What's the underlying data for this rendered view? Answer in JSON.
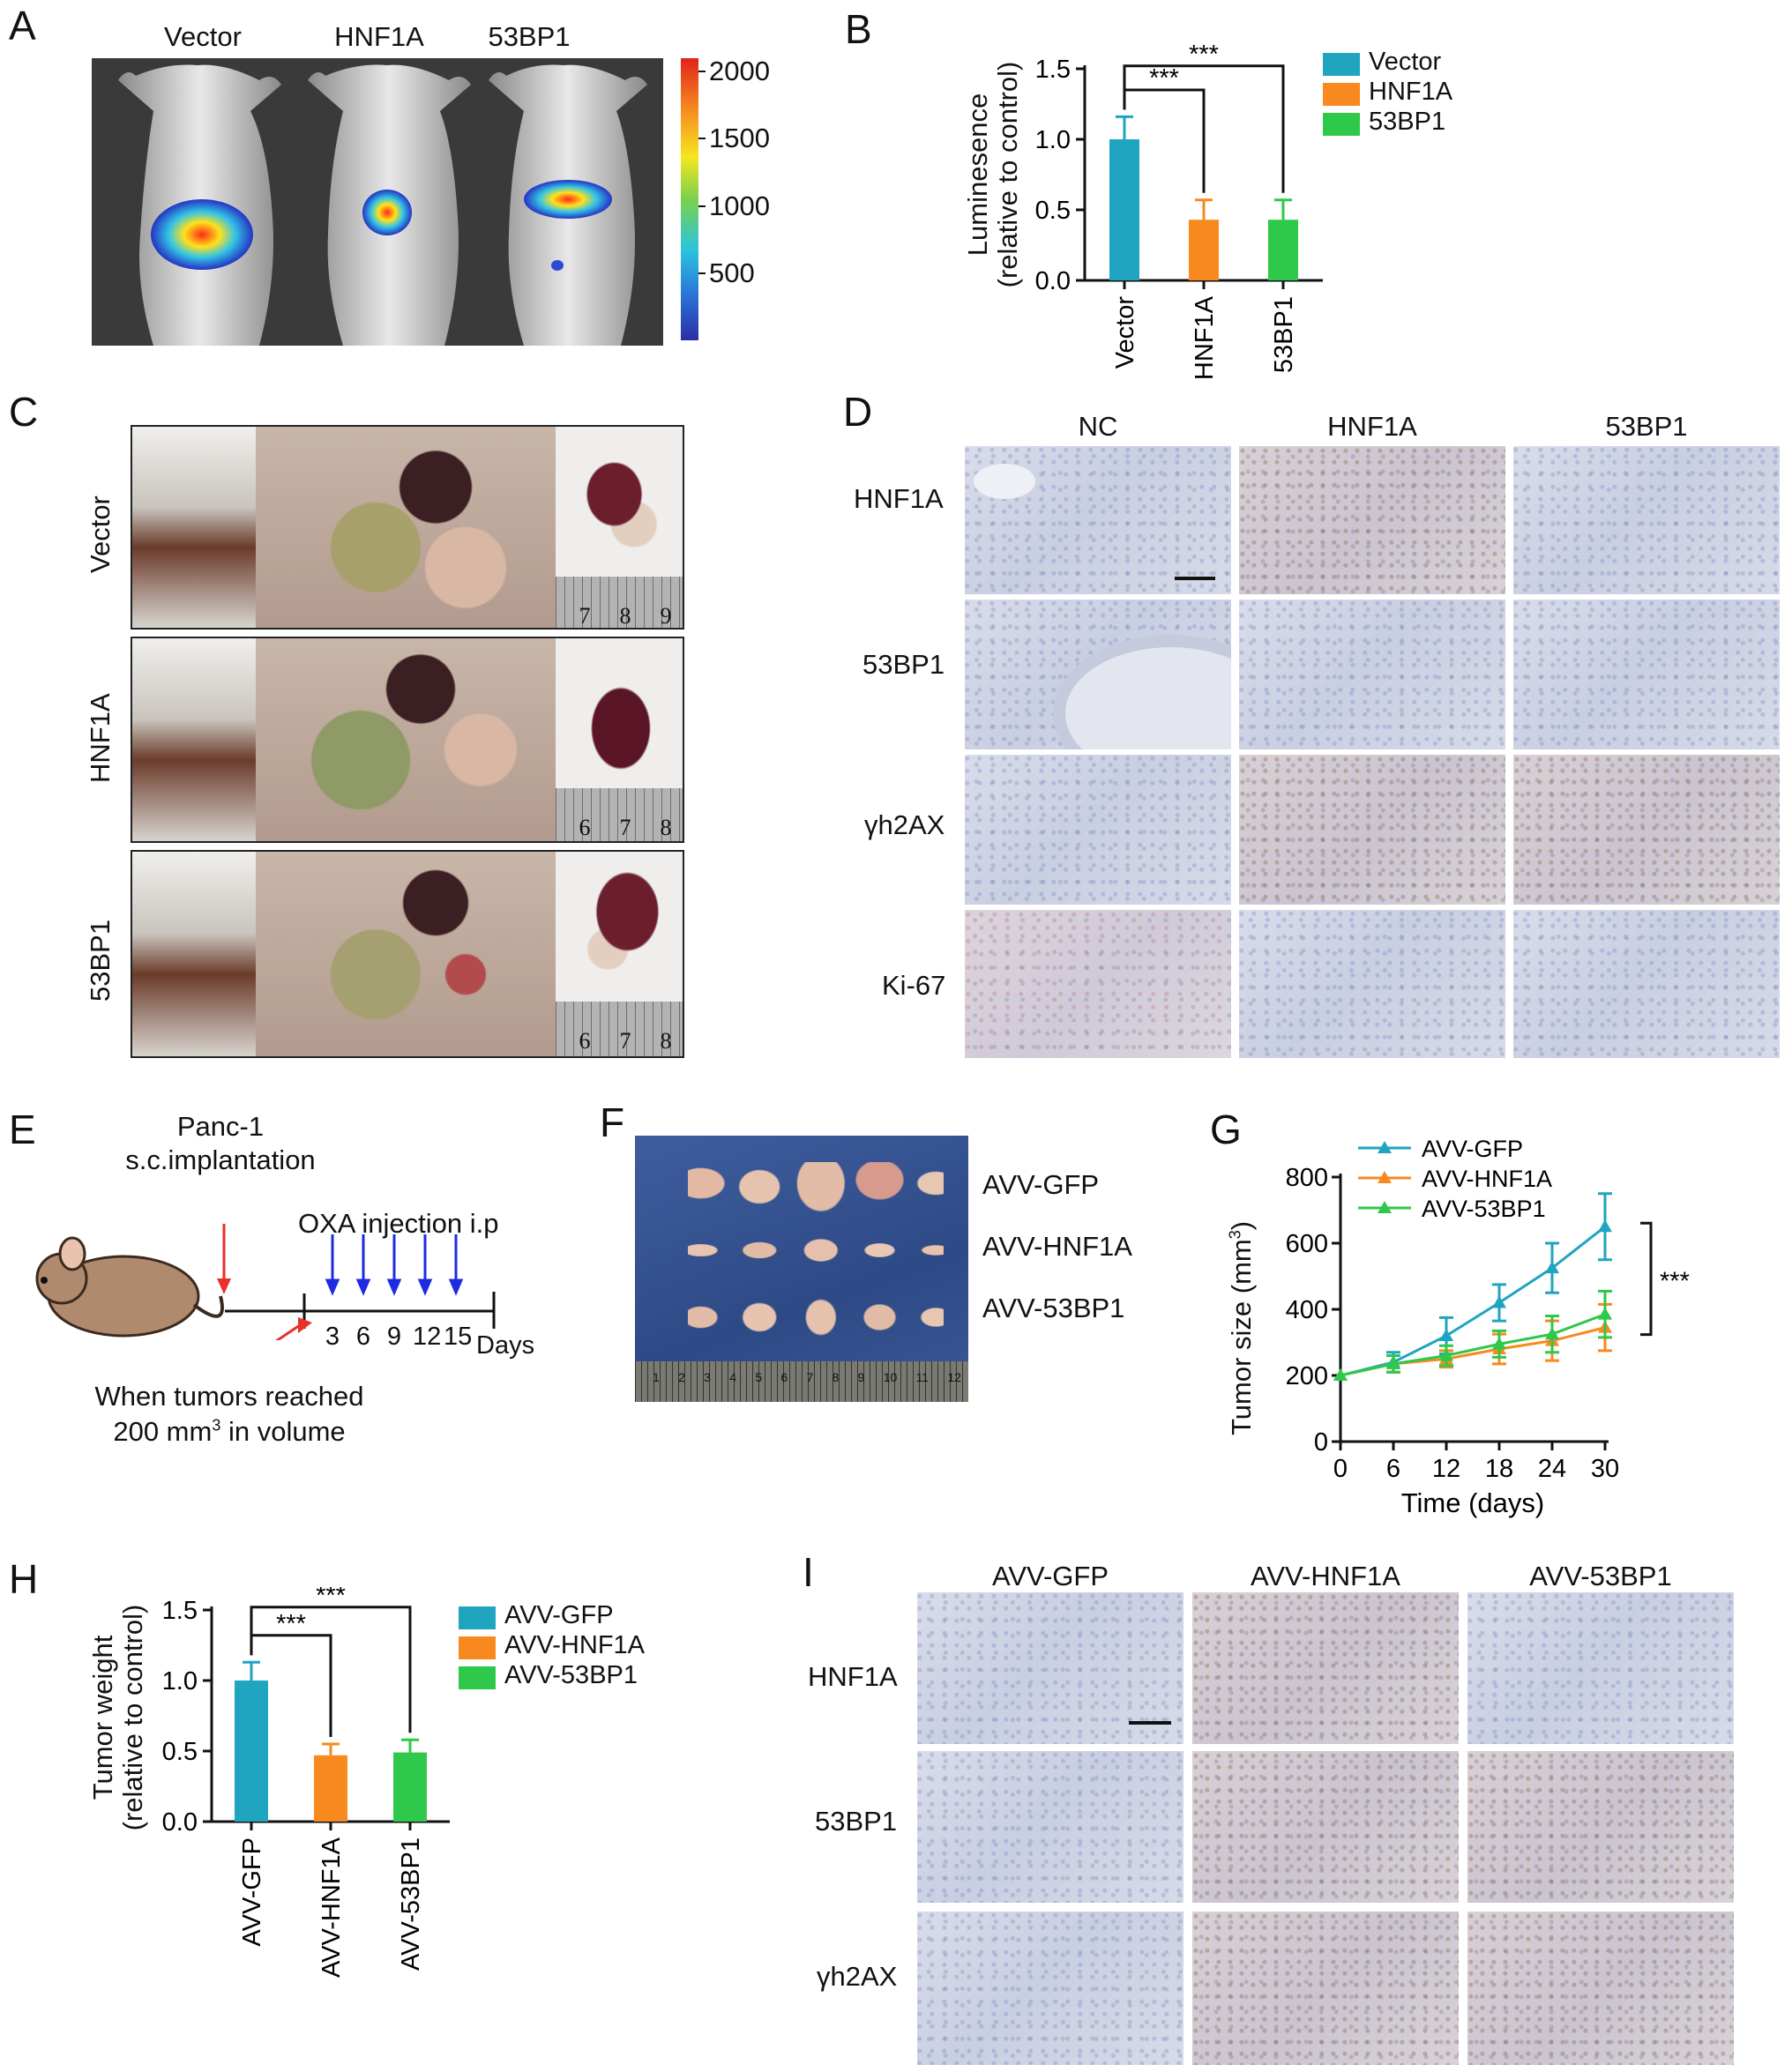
{
  "panel_labels": {
    "A": "A",
    "B": "B",
    "C": "C",
    "D": "D",
    "E": "E",
    "F": "F",
    "G": "G",
    "H": "H",
    "I": "I"
  },
  "colors": {
    "teal": "#1fa5bf",
    "orange": "#f7891e",
    "green": "#2ec84a",
    "black": "#111111"
  },
  "panelA": {
    "groups": [
      "Vector",
      "HNF1A",
      "53BP1"
    ],
    "colorbar_ticks": [
      "2000",
      "1500",
      "1000",
      "500"
    ],
    "colorbar_range": [
      0,
      2100
    ]
  },
  "panelC": {
    "rows": [
      "Vector",
      "HNF1A",
      "53BP1"
    ],
    "rulers": [
      [
        "7",
        "8",
        "9"
      ],
      [
        "6",
        "7",
        "8"
      ],
      [
        "6",
        "7",
        "8"
      ]
    ]
  },
  "panelD": {
    "columns": [
      "NC",
      "HNF1A",
      "53BP1"
    ],
    "rows": [
      "HNF1A",
      "53BP1",
      "γh2AX",
      "Ki-67"
    ]
  },
  "panelE": {
    "cell": "Panc-1",
    "route": "s.c.implantation",
    "treatment": "OXA injection i.p",
    "days": [
      "3",
      "6",
      "9",
      "12",
      "15"
    ],
    "days_label": "Days",
    "note_line1": "When tumors reached",
    "note_line2_pre": "200 mm",
    "note_line2_sup": "3",
    "note_line2_post": " in volume"
  },
  "panelF": {
    "labels": [
      "AVV-GFP",
      "AVV-HNF1A",
      "AVV-53BP1"
    ],
    "ruler": [
      "1",
      "2",
      "3",
      "4",
      "5",
      "6",
      "7",
      "8",
      "9",
      "10",
      "11",
      "12"
    ]
  },
  "chart_data": [
    {
      "id": "B",
      "type": "bar",
      "categories": [
        "Vector",
        "HNF1A",
        "53BP1"
      ],
      "values": [
        1.0,
        0.43,
        0.43
      ],
      "errors": [
        0.16,
        0.14,
        0.14
      ],
      "colors": [
        "#1fa5bf",
        "#f7891e",
        "#2ec84a"
      ],
      "ylabel_line1": "Luminesence",
      "ylabel_line2": "(relative to control)",
      "ylim": [
        0,
        1.5
      ],
      "yticks": [
        "0.0",
        "0.5",
        "1.0",
        "1.5"
      ],
      "legend": [
        "Vector",
        "HNF1A",
        "53BP1"
      ],
      "significance": [
        {
          "pair": [
            "Vector",
            "HNF1A"
          ],
          "label": "***"
        },
        {
          "pair": [
            "Vector",
            "53BP1"
          ],
          "label": "***"
        }
      ]
    },
    {
      "id": "G",
      "type": "line",
      "x": [
        0,
        6,
        12,
        18,
        24,
        30
      ],
      "xlabel": "Time (days)",
      "ylabel_pre": "Tumor size (mm",
      "ylabel_sup": "3",
      "ylabel_post": ")",
      "xticks": [
        "0",
        "6",
        "12",
        "18",
        "24",
        "30"
      ],
      "yticks": [
        "0",
        "200",
        "400",
        "600",
        "800"
      ],
      "ylim": [
        0,
        800
      ],
      "xlim": [
        0,
        30
      ],
      "series": [
        {
          "name": "AVV-GFP",
          "color": "#1fa5bf",
          "values": [
            200,
            240,
            320,
            420,
            525,
            650
          ],
          "errors": [
            0,
            30,
            55,
            55,
            75,
            100
          ]
        },
        {
          "name": "AVV-HNF1A",
          "color": "#f7891e",
          "values": [
            200,
            235,
            250,
            280,
            305,
            345
          ],
          "errors": [
            0,
            25,
            25,
            45,
            60,
            70
          ]
        },
        {
          "name": "AVV-53BP1",
          "color": "#2ec84a",
          "values": [
            200,
            235,
            260,
            295,
            325,
            385
          ],
          "errors": [
            0,
            25,
            30,
            40,
            55,
            70
          ]
        }
      ],
      "significance": "***"
    },
    {
      "id": "H",
      "type": "bar",
      "categories": [
        "AVV-GFP",
        "AVV-HNF1A",
        "AVV-53BP1"
      ],
      "values": [
        1.0,
        0.47,
        0.49
      ],
      "errors": [
        0.13,
        0.08,
        0.09
      ],
      "colors": [
        "#1fa5bf",
        "#f7891e",
        "#2ec84a"
      ],
      "ylabel_line1": "Tumor weight",
      "ylabel_line2": "(relative to control)",
      "ylim": [
        0,
        1.5
      ],
      "yticks": [
        "0.0",
        "0.5",
        "1.0",
        "1.5"
      ],
      "legend": [
        "AVV-GFP",
        "AVV-HNF1A",
        "AVV-53BP1"
      ],
      "significance": [
        {
          "pair": [
            "AVV-GFP",
            "AVV-HNF1A"
          ],
          "label": "***"
        },
        {
          "pair": [
            "AVV-GFP",
            "AVV-53BP1"
          ],
          "label": "***"
        }
      ]
    }
  ],
  "panelI": {
    "columns": [
      "AVV-GFP",
      "AVV-HNF1A",
      "AVV-53BP1"
    ],
    "rows": [
      "HNF1A",
      "53BP1",
      "γh2AX"
    ]
  }
}
